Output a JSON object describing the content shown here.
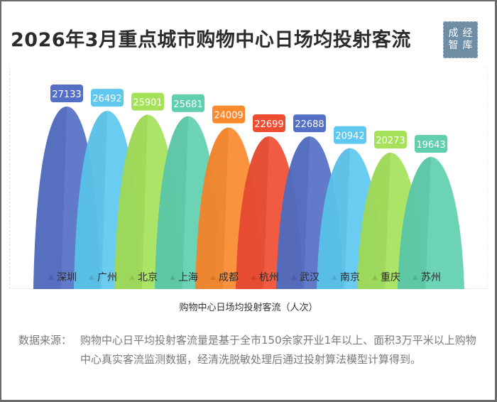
{
  "header": {
    "title": "2026年3月重点城市购物中心日场均投射客流",
    "logo_chars": [
      "成",
      "经",
      "智",
      "库"
    ]
  },
  "chart_data": {
    "type": "bar",
    "subtype": "pictorial-arch",
    "title": "2026年3月重点城市购物中心日场均投射客流",
    "xlabel": "购物中心日场均投射客流（人次）",
    "ylabel": "",
    "categories": [
      "深圳",
      "广州",
      "北京",
      "上海",
      "成都",
      "杭州",
      "武汉",
      "南京",
      "重庆",
      "苏州"
    ],
    "values": [
      27133,
      26492,
      25901,
      25681,
      24009,
      22699,
      22688,
      20942,
      20273,
      19643
    ],
    "colors": [
      "#5470c6",
      "#5ec8f0",
      "#a5e25a",
      "#5fcfae",
      "#fb8a2e",
      "#ef4d31",
      "#5470c6",
      "#5ec8f0",
      "#a5e25a",
      "#5fcfae"
    ],
    "data_labels": true,
    "grid": false,
    "legend": "none"
  },
  "footer": {
    "source_label": "数据来源：",
    "source_text": "购物中心日平均投射客流量是基于全市150余家开业1年以上、面积3万平米以上购物中心真实客流监测数据，经清洗脱敏处理后通过投射算法模型计算得到。"
  }
}
